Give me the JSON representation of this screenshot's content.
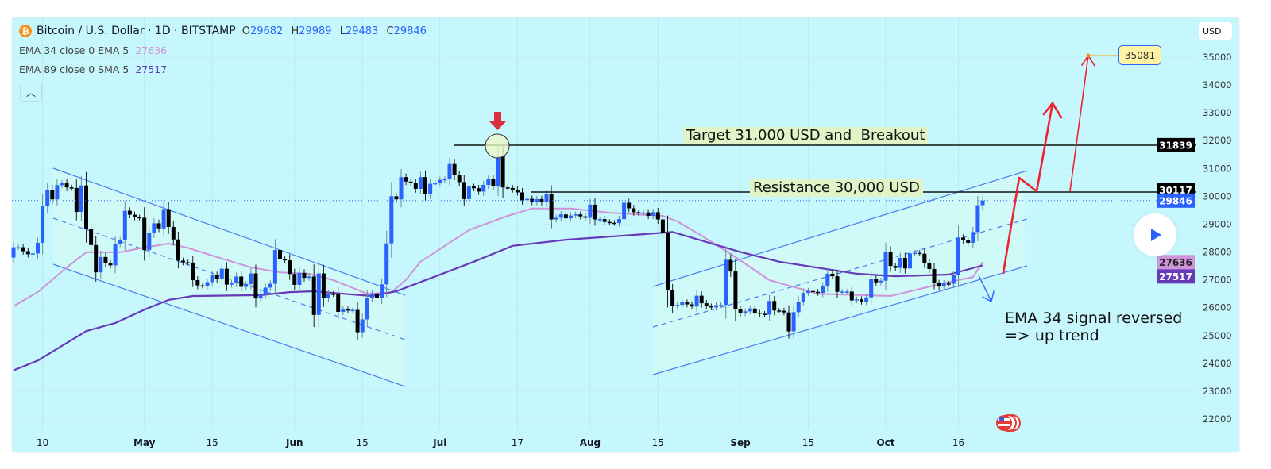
{
  "header": {
    "symbol_icon": "bitcoin-icon",
    "title": "Bitcoin / U.S. Dollar · 1D · BITSTAMP",
    "open_label": "O",
    "open": "29682",
    "high_label": "H",
    "high": "29989",
    "low_label": "L",
    "low": "29483",
    "close_label": "C",
    "close": "29846",
    "indicators": [
      {
        "label": "EMA 34 close 0 EMA 5",
        "value": "27636",
        "color": "#ce93d8"
      },
      {
        "label": "EMA 89 close 0 SMA 5",
        "value": "27517",
        "color": "#673ab7"
      }
    ],
    "collapse_icon": "chevron-up-icon"
  },
  "currency_label": "USD",
  "annotations": {
    "target_text": "Target 31,000 USD and  Breakout",
    "resistance_text": "Resistance 30,000 USD",
    "note_line1": "EMA 34 signal reversed",
    "note_line2": "=> up trend",
    "target_price_tag": "35081"
  },
  "price_badges": {
    "target_line": "31839",
    "resistance_line": "30117",
    "last_price": "29846",
    "ema34": "27636",
    "ema89": "27517"
  },
  "colors": {
    "background": "#c6f7fd",
    "up_candle": "#2962ff",
    "down_candle": "#000000",
    "ema34": "#ce93d8",
    "ema89": "#673ab7",
    "last_price": "#2962ff",
    "arrows": "#f0202f"
  },
  "chart_data": {
    "type": "candlestick",
    "title": "Bitcoin / U.S. Dollar · 1D · BITSTAMP",
    "y_axis": {
      "ticks": [
        35000,
        34000,
        33000,
        32000,
        31000,
        30000,
        29000,
        28000,
        27000,
        26000,
        25000,
        24000,
        23000,
        22000
      ],
      "ylim": [
        21500,
        35900
      ],
      "position": "right"
    },
    "x_axis": {
      "ticks": [
        {
          "label": "10",
          "date": "Apr 10",
          "bold": false
        },
        {
          "label": "May",
          "date": "May 1",
          "bold": true
        },
        {
          "label": "15",
          "date": "May 15",
          "bold": false
        },
        {
          "label": "Jun",
          "date": "Jun 1",
          "bold": true
        },
        {
          "label": "15",
          "date": "Jun 15",
          "bold": false
        },
        {
          "label": "Jul",
          "date": "Jul 1",
          "bold": true
        },
        {
          "label": "17",
          "date": "Jul 17",
          "bold": false
        },
        {
          "label": "Aug",
          "date": "Aug 1",
          "bold": true
        },
        {
          "label": "15",
          "date": "Aug 15",
          "bold": false
        },
        {
          "label": "Sep",
          "date": "Sep 1",
          "bold": true
        },
        {
          "label": "15",
          "date": "Sep 15",
          "bold": false
        },
        {
          "label": "Oct",
          "date": "Oct 1",
          "bold": true
        },
        {
          "label": "16",
          "date": "Oct 16",
          "bold": false
        }
      ]
    },
    "grid": true,
    "first_open": 27800,
    "candles": [
      {
        "month": "Apr",
        "from_day": 4,
        "closes": [
          28170,
          28170,
          28030,
          27920,
          27950,
          28330,
          29650,
          30230,
          29890,
          30400,
          30480,
          30320,
          30300,
          29440,
          30390,
          28820,
          28250,
          27270,
          27820,
          27600,
          27520,
          28300,
          28420,
          29480,
          29340,
          29250,
          29230
        ]
      },
      {
        "month": "May",
        "from_day": 1,
        "closes": [
          28070,
          28680,
          29030,
          28850,
          29540,
          28900,
          28450,
          27690,
          27630,
          27620,
          26990,
          26800,
          26790,
          26920,
          27170,
          27030,
          27400,
          26830,
          26890,
          27120,
          26750,
          26850,
          27230,
          26330,
          26480,
          26720,
          26860,
          28070,
          27740,
          27700,
          27210
        ]
      },
      {
        "month": "Jun",
        "from_day": 1,
        "closes": [
          26820,
          27250,
          27070,
          27120,
          25740,
          27230,
          26340,
          26500,
          26480,
          25850,
          25940,
          25900,
          25920,
          25120,
          25580,
          26340,
          26510,
          26340,
          26840,
          28310,
          30000,
          29890,
          30690,
          30530,
          30470,
          30270,
          30690,
          30080,
          30450,
          30470
        ]
      },
      {
        "month": "Jul",
        "from_day": 1,
        "closes": [
          30590,
          30620,
          31160,
          30770,
          30510,
          29900,
          30350,
          30290,
          30170,
          30410,
          30620,
          30380,
          31470,
          30320,
          30300,
          30240,
          30140,
          29860,
          29910,
          29800,
          29900,
          29790,
          30080,
          29170,
          29230,
          29350,
          29210,
          29310,
          29350,
          29280,
          29230
        ]
      },
      {
        "month": "Aug",
        "from_day": 1,
        "closes": [
          29700,
          29170,
          29180,
          29080,
          29050,
          29040,
          29180,
          29770,
          29570,
          29430,
          29400,
          29420,
          29300,
          29430,
          29170,
          28700,
          26620,
          26050,
          26100,
          26190,
          26120,
          26040,
          26430,
          26160,
          26050,
          26010,
          26090,
          26100,
          27720,
          27300,
          25940
        ]
      },
      {
        "month": "Sep",
        "from_day": 1,
        "closes": [
          25800,
          25870,
          25970,
          25820,
          25780,
          25750,
          26240,
          25900,
          25890,
          25830,
          25150,
          25840,
          26220,
          26530,
          26600,
          26570,
          26530,
          26770,
          27220,
          27130,
          26570,
          26580,
          26580,
          26260,
          26300,
          26220,
          26370,
          27030,
          26910,
          26970
        ]
      },
      {
        "month": "Oct",
        "from_day": 1,
        "closes": [
          27990,
          27500,
          27430,
          27790,
          27410,
          27950,
          27970,
          27940,
          27600,
          27390,
          26880,
          26760,
          26870,
          26860,
          27160,
          28520,
          28420,
          28330,
          28720,
          29680,
          29846
        ]
      }
    ],
    "series": [
      {
        "name": "EMA 34 close 0 EMA 5",
        "color": "#ce93d8",
        "points": [
          [
            "Apr 4",
            26050
          ],
          [
            "Apr 9",
            26560
          ],
          [
            "Apr 15",
            27450
          ],
          [
            "Apr 19",
            27990
          ],
          [
            "Apr 26",
            27990
          ],
          [
            "May 1",
            28160
          ],
          [
            "May 6",
            28300
          ],
          [
            "May 10",
            28150
          ],
          [
            "May 15",
            27870
          ],
          [
            "May 23",
            27450
          ],
          [
            "May 29",
            27270
          ],
          [
            "Jun 4",
            27220
          ],
          [
            "Jun 9",
            26990
          ],
          [
            "Jun 16",
            26500
          ],
          [
            "Jun 21",
            26550
          ],
          [
            "Jun 24",
            27000
          ],
          [
            "Jun 27",
            27650
          ],
          [
            "Jul 7",
            28790
          ],
          [
            "Jul 15",
            29300
          ],
          [
            "Jul 20",
            29560
          ],
          [
            "Jul 28",
            29560
          ],
          [
            "Aug 5",
            29410
          ],
          [
            "Aug 16",
            29300
          ],
          [
            "Aug 19",
            29100
          ],
          [
            "Aug 24",
            28590
          ],
          [
            "Aug 30",
            27930
          ],
          [
            "Sep 7",
            26990
          ],
          [
            "Sep 17",
            26500
          ],
          [
            "Oct 2",
            26420
          ],
          [
            "Oct 13",
            26880
          ],
          [
            "Oct 19",
            27100
          ],
          [
            "Oct 21",
            27636
          ]
        ]
      },
      {
        "name": "EMA 89 close 0 SMA 5",
        "color": "#673ab7",
        "points": [
          [
            "Apr 4",
            23750
          ],
          [
            "Apr 9",
            24100
          ],
          [
            "Apr 19",
            25160
          ],
          [
            "Apr 25",
            25450
          ],
          [
            "May 1",
            25930
          ],
          [
            "May 6",
            26280
          ],
          [
            "May 11",
            26420
          ],
          [
            "May 25",
            26450
          ],
          [
            "May 31",
            26560
          ],
          [
            "Jun 5",
            26590
          ],
          [
            "Jun 11",
            26500
          ],
          [
            "Jun 17",
            26420
          ],
          [
            "Jun 22",
            26590
          ],
          [
            "Jul 8",
            27650
          ],
          [
            "Jul 16",
            28220
          ],
          [
            "Jul 27",
            28440
          ],
          [
            "Aug 12",
            28640
          ],
          [
            "Aug 18",
            28720
          ],
          [
            "Sep 1",
            28000
          ],
          [
            "Sep 9",
            27650
          ],
          [
            "Sep 25",
            27220
          ],
          [
            "Oct 3",
            27130
          ],
          [
            "Oct 14",
            27190
          ],
          [
            "Oct 21",
            27517
          ]
        ]
      }
    ]
  }
}
